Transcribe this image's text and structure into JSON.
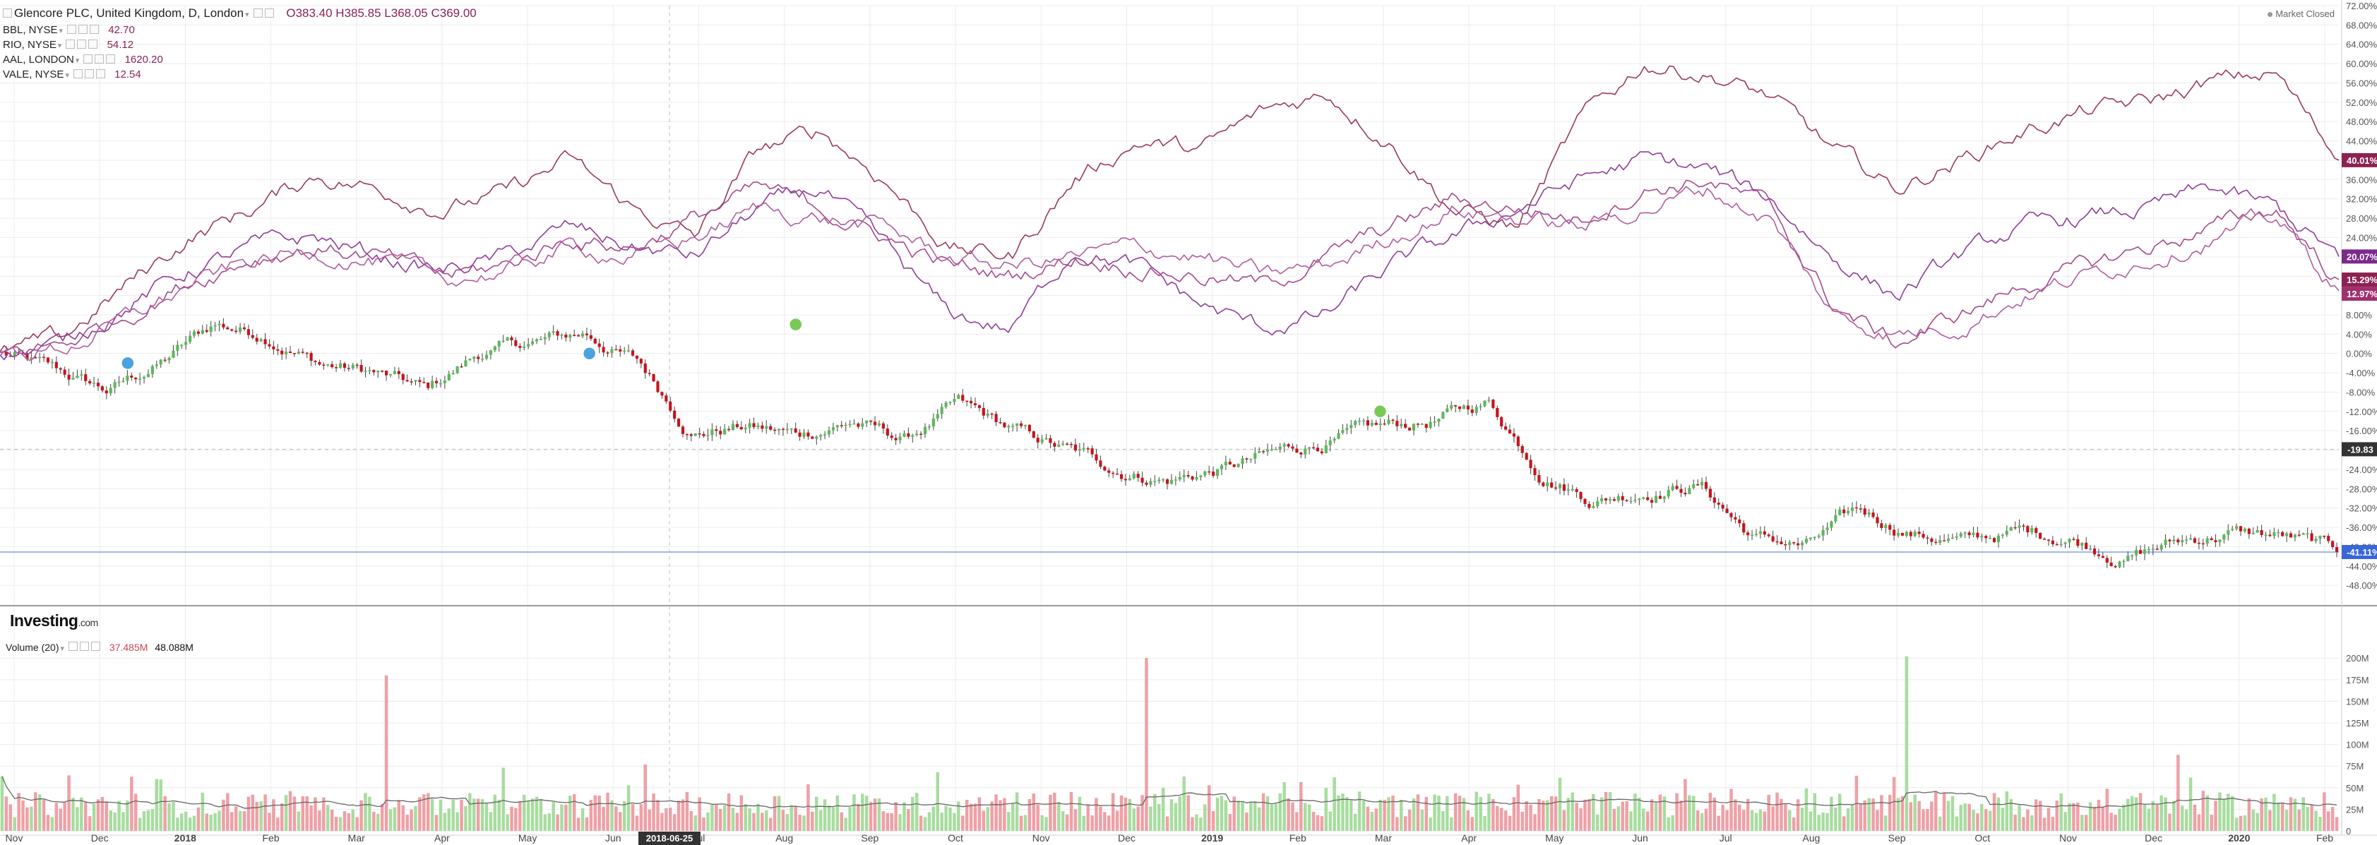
{
  "header": {
    "title": "Glencore PLC, United Kingdom, D, London",
    "ohlc": "O383.40  H385.85  L368.05  C369.00",
    "compare": [
      {
        "symbol": "BBL, NYSE",
        "value": "42.70"
      },
      {
        "symbol": "RIO, NYSE",
        "value": "54.12"
      },
      {
        "symbol": "AAL, LONDON",
        "value": "1620.20"
      },
      {
        "symbol": "VALE, NYSE",
        "value": "12.54"
      }
    ],
    "market_status": "Market Closed"
  },
  "logo": {
    "text": "Investing",
    "suffix": ".com"
  },
  "volume_header": {
    "label": "Volume (20)",
    "value1": "37.485M",
    "value2": "48.088M"
  },
  "crosshair_date": "2018-06-25",
  "crosshair_value": "-19.83",
  "colors": {
    "up": "#5cb85c",
    "down": "#c9121b",
    "vol_up": "#a8dca0",
    "vol_down": "#eea0a6",
    "aal": "#9a3b5a",
    "bbl": "#8f3d99",
    "rio": "#a54a8b",
    "vale": "#b05e9e",
    "glencore_label": "#3a66d8",
    "bg": "#ffffff",
    "grid": "#ececec"
  },
  "chart_data": {
    "type": "line",
    "x_labels": [
      "Nov",
      "Dec",
      "2018",
      "Feb",
      "Mar",
      "Apr",
      "May",
      "Jun",
      "Jul",
      "Aug",
      "Sep",
      "Oct",
      "Nov",
      "Dec",
      "2019",
      "Feb",
      "Mar",
      "Apr",
      "May",
      "Jun",
      "Jul",
      "Aug",
      "Sep",
      "Oct",
      "Nov",
      "Dec",
      "2020",
      "Feb"
    ],
    "y_ticks": [
      "72.00%",
      "68.00%",
      "64.00%",
      "60.00%",
      "56.00%",
      "52.00%",
      "48.00%",
      "44.00%",
      "40.00%",
      "36.00%",
      "32.00%",
      "28.00%",
      "24.00%",
      "20.00%",
      "16.00%",
      "12.00%",
      "8.00%",
      "4.00%",
      "0.00%",
      "-4.00%",
      "-8.00%",
      "-12.00%",
      "-16.00%",
      "-20.00%",
      "-24.00%",
      "-28.00%",
      "-32.00%",
      "-36.00%",
      "-40.00%",
      "-44.00%",
      "-48.00%"
    ],
    "ylim": [
      -49,
      72
    ],
    "last_value_labels": [
      {
        "series": "AAL",
        "label": "40.01%",
        "value": 40.01
      },
      {
        "series": "BBL",
        "label": "20.07%",
        "value": 20.07
      },
      {
        "series": "RIO",
        "label": "15.29%",
        "value": 15.29
      },
      {
        "series": "VALE",
        "label": "12.97%",
        "value": 12.97
      },
      {
        "series": "Glencore",
        "label": "-41.11%",
        "value": -41.11
      }
    ],
    "series": [
      {
        "name": "AAL",
        "values": [
          0,
          3,
          14,
          24,
          30,
          37,
          34,
          30,
          33,
          40,
          30,
          24,
          42,
          46,
          36,
          22,
          20,
          36,
          44,
          42,
          50,
          54,
          44,
          30,
          26,
          48,
          60,
          58,
          53,
          42,
          34,
          40,
          46,
          50,
          52,
          56,
          58,
          40.01
        ]
      },
      {
        "name": "BBL",
        "values": [
          0,
          2,
          10,
          17,
          22,
          24,
          20,
          17,
          20,
          26,
          22,
          20,
          30,
          34,
          22,
          8,
          5,
          22,
          18,
          10,
          5,
          8,
          18,
          24,
          30,
          36,
          40,
          38,
          32,
          20,
          12,
          20,
          26,
          28,
          30,
          34,
          30,
          20.07
        ]
      },
      {
        "name": "RIO",
        "values": [
          0,
          2,
          8,
          15,
          20,
          22,
          20,
          16,
          18,
          24,
          22,
          28,
          34,
          30,
          24,
          18,
          16,
          20,
          18,
          16,
          14,
          20,
          26,
          32,
          30,
          28,
          34,
          36,
          30,
          10,
          2,
          8,
          14,
          18,
          22,
          26,
          30,
          15.29
        ]
      },
      {
        "name": "VALE",
        "values": [
          0,
          1,
          7,
          14,
          19,
          21,
          19,
          15,
          17,
          22,
          20,
          24,
          30,
          28,
          26,
          20,
          18,
          20,
          22,
          20,
          16,
          18,
          24,
          30,
          28,
          26,
          30,
          34,
          28,
          8,
          4,
          6,
          12,
          16,
          20,
          24,
          28,
          12.97
        ]
      },
      {
        "name": "Glencore",
        "values": [
          0,
          -4,
          -8,
          -2,
          6,
          4,
          -2,
          -4,
          -8,
          0,
          2,
          4,
          -2,
          -16,
          -15,
          -17,
          -14,
          -18,
          -11,
          -16,
          -20,
          -24,
          -26,
          -24,
          -21,
          -18,
          -16,
          -14,
          -10,
          -24,
          -30,
          -28,
          -27,
          -38,
          -40,
          -33,
          -37,
          -39,
          -37,
          -38,
          -42,
          -39,
          -37,
          -38,
          -41.11
        ]
      }
    ]
  },
  "volume_data": {
    "type": "bar",
    "y_ticks": [
      "200M",
      "175M",
      "150M",
      "125M",
      "100M",
      "75M",
      "50M",
      "25M",
      "0"
    ],
    "ylim": [
      0,
      210
    ]
  }
}
